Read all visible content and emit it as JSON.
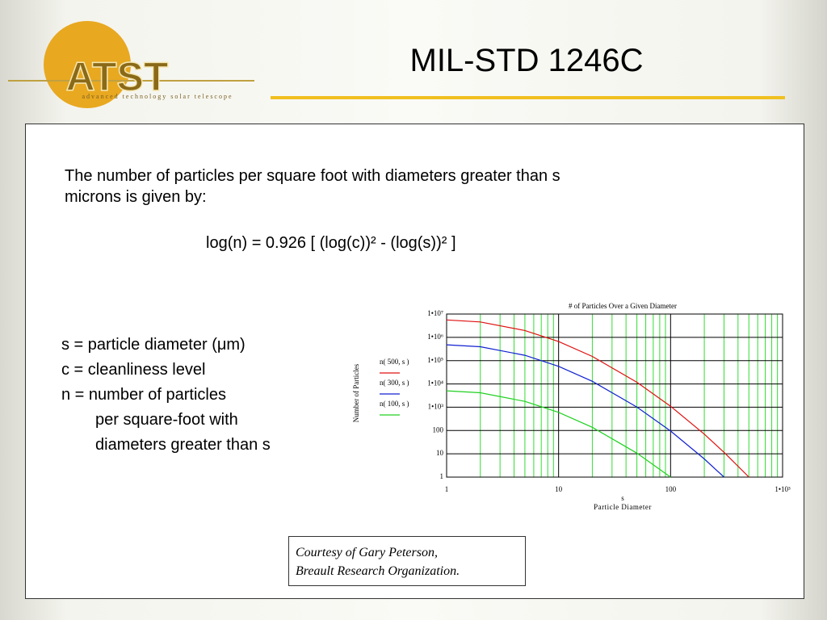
{
  "logo": {
    "name": "ATST",
    "tagline": "advanced technology solar telescope"
  },
  "title": "MIL-STD 1246C",
  "intro": [
    "The number of particles per square foot with diameters greater than s",
    "microns is given by:"
  ],
  "formula": "log(n) = 0.926 [ (log(c))² - (log(s))² ]",
  "definitions": [
    "s = particle diameter (μm)",
    "c = cleanliness level",
    "n = number of particles",
    "per square-foot with",
    "diameters greater than s"
  ],
  "credit": [
    "Courtesy of Gary Peterson,",
    "Breault Research Organization."
  ],
  "chart_data": {
    "type": "line",
    "title": "# of Particles Over a Given Diameter",
    "x_label_symbol": "s",
    "x_label": "Particle Diameter",
    "y_label": "Number of Particles",
    "x": [
      1,
      2,
      5,
      10,
      20,
      50,
      100,
      200,
      300,
      500
    ],
    "series": [
      {
        "name": "n( 500, s )",
        "color": "#e01010",
        "values": [
          5570000,
          4590000,
          1960000,
          660000,
          151000,
          11800,
          1100,
          70,
          11.6,
          1
        ]
      },
      {
        "name": "n( 300, s )",
        "color": "#1020d0",
        "values": [
          480000,
          396000,
          169000,
          57000,
          13000,
          1020,
          95,
          6,
          1,
          null
        ]
      },
      {
        "name": "n( 100, s )",
        "color": "#20d020",
        "values": [
          5060,
          4170,
          1785,
          600,
          137,
          10.7,
          1,
          null,
          null,
          null
        ]
      }
    ],
    "log_x": true,
    "log_y": true,
    "grid": true,
    "legend": "left",
    "xlim": [
      1,
      1000
    ],
    "ylim": [
      1,
      10000000
    ],
    "xticks": [
      1,
      10,
      100,
      {
        "value": 1000,
        "label": "1•10³"
      }
    ],
    "xminor_ticks": [
      2,
      3,
      4,
      5,
      6,
      7,
      8,
      9,
      20,
      30,
      40,
      50,
      60,
      70,
      80,
      90,
      200,
      300,
      400,
      500,
      600,
      700,
      800,
      900
    ],
    "minor_grid_color": "#33dd33",
    "yticks": [
      1,
      10,
      100,
      {
        "value": 1000,
        "label": "1•10³"
      },
      {
        "value": 10000,
        "label": "1•10⁴"
      },
      {
        "value": 100000,
        "label": "1•10⁵"
      },
      {
        "value": 1000000,
        "label": "1•10⁶"
      },
      {
        "value": 10000000,
        "label": "1•10⁷"
      }
    ]
  }
}
